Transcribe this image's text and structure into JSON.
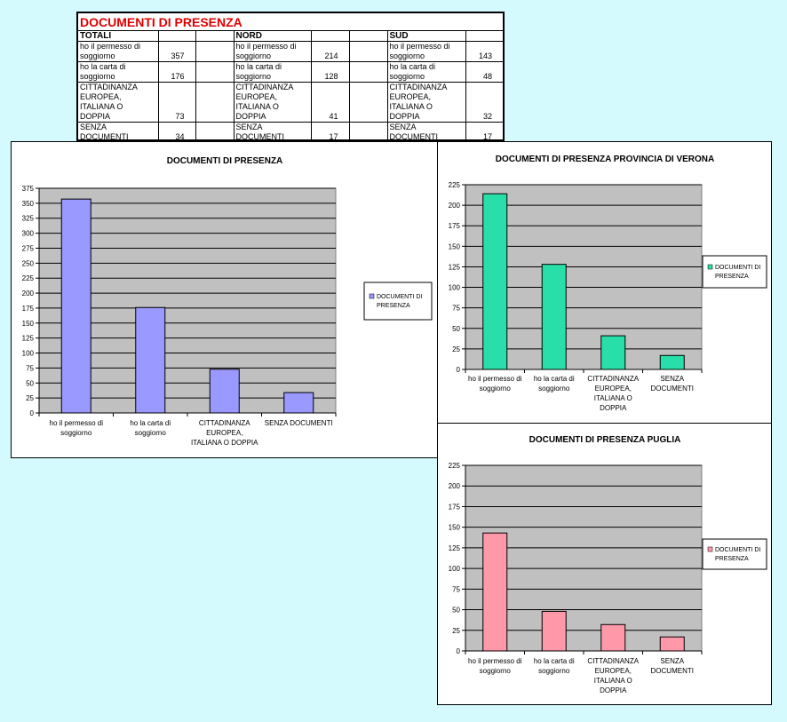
{
  "table": {
    "title": "DOCUMENTI DI PRESENZA",
    "groups": [
      {
        "name": "TOTALI",
        "rows": [
          {
            "label": [
              "ho il permesso di",
              "soggiorno"
            ],
            "value": "357"
          },
          {
            "label": [
              "ho la carta di",
              "soggiorno"
            ],
            "value": "176"
          },
          {
            "label": [
              "CITTADINANZA",
              "EUROPEA,",
              "ITALIANA O",
              "DOPPIA"
            ],
            "value": "73"
          },
          {
            "label": [
              "SENZA",
              "DOCUMENTI"
            ],
            "value": "34"
          }
        ]
      },
      {
        "name": "NORD",
        "rows": [
          {
            "label": [
              "ho il permesso di",
              "soggiorno"
            ],
            "value": "214"
          },
          {
            "label": [
              "ho la carta di",
              "soggiorno"
            ],
            "value": "128"
          },
          {
            "label": [
              "CITTADINANZA",
              "EUROPEA,",
              "ITALIANA O",
              "DOPPIA"
            ],
            "value": "41"
          },
          {
            "label": [
              "SENZA",
              "DOCUMENTI"
            ],
            "value": "17"
          }
        ]
      },
      {
        "name": "SUD",
        "rows": [
          {
            "label": [
              "ho il permesso di",
              "soggiorno"
            ],
            "value": "143"
          },
          {
            "label": [
              "ho la carta di",
              "soggiorno"
            ],
            "value": "48"
          },
          {
            "label": [
              "CITTADINANZA",
              "EUROPEA,",
              "ITALIANA O",
              "DOPPIA"
            ],
            "value": "32"
          },
          {
            "label": [
              "SENZA",
              "DOCUMENTI"
            ],
            "value": "17"
          }
        ]
      }
    ]
  },
  "chart_data": [
    {
      "type": "bar",
      "title": "DOCUMENTI DI PRESENZA",
      "categories": [
        [
          "ho il permesso di",
          "soggiorno"
        ],
        [
          "ho la carta di",
          "soggiorno"
        ],
        [
          "CITTADINANZA",
          "EUROPEA,",
          "ITALIANA O DOPPIA"
        ],
        [
          "SENZA DOCUMENTI"
        ]
      ],
      "series": [
        {
          "name": "DOCUMENTI DI PRESENZA",
          "values": [
            357,
            176,
            73,
            34
          ],
          "color": "#9999ff"
        }
      ],
      "ylim": [
        0,
        375
      ],
      "ystep": 25,
      "grid": true,
      "plot_bg": "#c0c0c0",
      "legend": "right"
    },
    {
      "type": "bar",
      "title": "DOCUMENTI DI PRESENZA PROVINCIA DI VERONA",
      "categories": [
        [
          "ho il permesso di",
          "soggiorno"
        ],
        [
          "ho la carta di",
          "soggiorno"
        ],
        [
          "CITTADINANZA",
          "EUROPEA,",
          "ITALIANA O",
          "DOPPIA"
        ],
        [
          "SENZA",
          "DOCUMENTI"
        ]
      ],
      "series": [
        {
          "name": "DOCUMENTI DI PRESENZA",
          "values": [
            214,
            128,
            41,
            17
          ],
          "color": "#29dfa9"
        }
      ],
      "ylim": [
        0,
        225
      ],
      "ystep": 25,
      "grid": true,
      "plot_bg": "#c0c0c0",
      "legend": "right"
    },
    {
      "type": "bar",
      "title": "DOCUMENTI DI PRESENZA PUGLIA",
      "categories": [
        [
          "ho il permesso di",
          "soggiorno"
        ],
        [
          "ho la carta di",
          "soggiorno"
        ],
        [
          "CITTADINANZA",
          "EUROPEA,",
          "ITALIANA O",
          "DOPPIA"
        ],
        [
          "SENZA",
          "DOCUMENTI"
        ]
      ],
      "series": [
        {
          "name": "DOCUMENTI DI PRESENZA",
          "values": [
            143,
            48,
            32,
            17
          ],
          "color": "#ff99aa"
        }
      ],
      "ylim": [
        0,
        225
      ],
      "ystep": 25,
      "grid": true,
      "plot_bg": "#c0c0c0",
      "legend": "right"
    }
  ]
}
